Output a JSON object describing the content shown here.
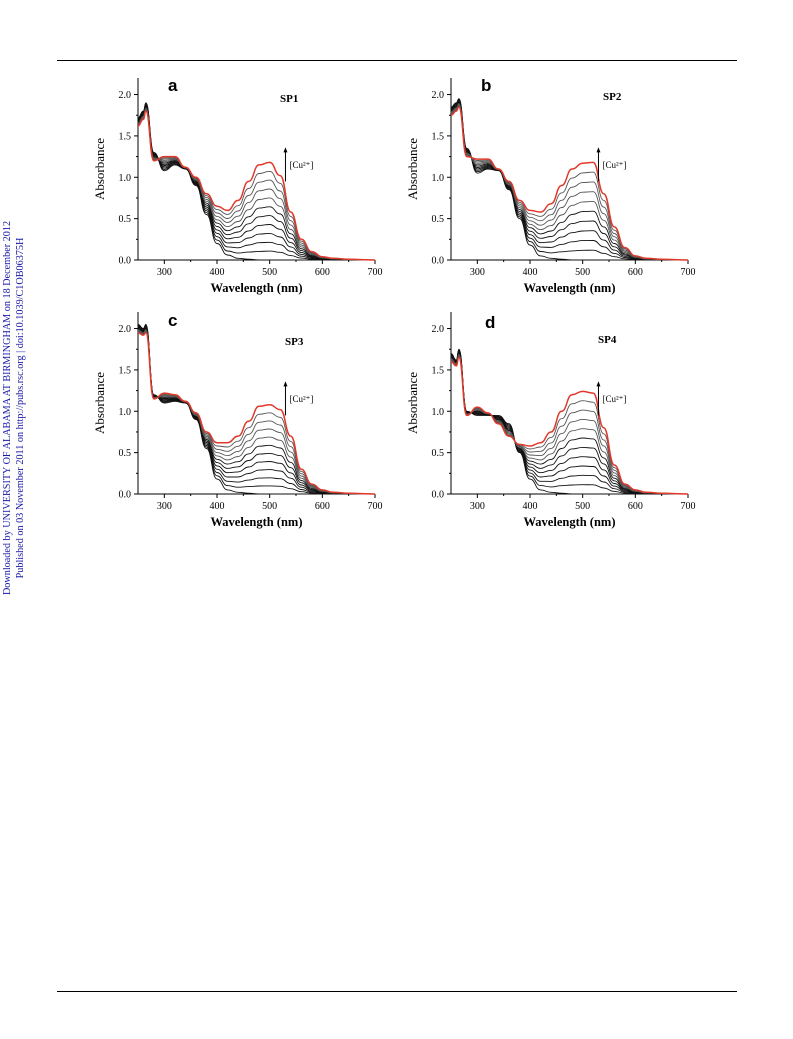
{
  "side_note": {
    "line1": "Downloaded by UNIVERSITY OF ALABAMA AT BIRMINGHAM on 18 December 2012",
    "line2": "Published on 03 November 2011 on http://pubs.rsc.org | doi:10.1039/C1OB06375H"
  },
  "colors": {
    "final_curve": "#e0392b",
    "curves": "#111111",
    "note_text": "#1a1aa8"
  },
  "chart_data": [
    {
      "type": "line",
      "panel": "a",
      "sample": "SP1",
      "xlabel": "Wavelength (nm)",
      "ylabel": "Absorbance",
      "annotation": "[Cu²⁺]",
      "xlim": [
        250,
        700
      ],
      "ylim": [
        0,
        2.2
      ],
      "xticks": [
        300,
        400,
        500,
        600,
        700
      ],
      "yticks": [
        0.0,
        0.5,
        1.0,
        1.5,
        2.0
      ],
      "series_count": 12,
      "x": [
        250,
        260,
        265,
        280,
        300,
        320,
        340,
        360,
        380,
        400,
        420,
        440,
        460,
        480,
        500,
        520,
        540,
        560,
        580,
        600,
        620,
        650,
        700
      ],
      "first": [
        1.72,
        1.8,
        1.9,
        1.3,
        1.08,
        1.15,
        1.1,
        0.9,
        0.55,
        0.2,
        0.06,
        0.02,
        0.01,
        0.0,
        0.0,
        0.0,
        0.0,
        0.0,
        0.0,
        0.0,
        0.0,
        0.0,
        0.0
      ],
      "final": [
        1.62,
        1.7,
        1.8,
        1.2,
        1.25,
        1.25,
        1.12,
        1.0,
        0.8,
        0.65,
        0.6,
        0.72,
        0.95,
        1.15,
        1.18,
        1.02,
        0.58,
        0.25,
        0.1,
        0.04,
        0.02,
        0.01,
        0.0
      ]
    },
    {
      "type": "line",
      "panel": "b",
      "sample": "SP2",
      "xlabel": "Wavelength (nm)",
      "ylabel": "Absorbance",
      "annotation": "[Cu²⁺]",
      "xlim": [
        250,
        700
      ],
      "ylim": [
        0,
        2.2
      ],
      "xticks": [
        300,
        400,
        500,
        600,
        700
      ],
      "yticks": [
        0.0,
        0.5,
        1.0,
        1.5,
        2.0
      ],
      "series_count": 11,
      "x": [
        250,
        260,
        265,
        280,
        300,
        320,
        340,
        360,
        380,
        400,
        420,
        440,
        460,
        480,
        500,
        520,
        540,
        560,
        580,
        600,
        620,
        650,
        700
      ],
      "first": [
        1.85,
        1.9,
        1.95,
        1.35,
        1.05,
        1.1,
        1.08,
        0.85,
        0.5,
        0.18,
        0.05,
        0.02,
        0.01,
        0.0,
        0.0,
        0.0,
        0.0,
        0.0,
        0.0,
        0.0,
        0.0,
        0.0,
        0.0
      ],
      "final": [
        1.75,
        1.8,
        1.85,
        1.25,
        1.22,
        1.22,
        1.1,
        0.95,
        0.72,
        0.6,
        0.58,
        0.68,
        0.9,
        1.1,
        1.17,
        1.18,
        0.8,
        0.4,
        0.15,
        0.05,
        0.02,
        0.01,
        0.0
      ]
    },
    {
      "type": "line",
      "panel": "c",
      "sample": "SP3",
      "xlabel": "Wavelength (nm)",
      "ylabel": "Absorbance",
      "annotation": "[Cu²⁺]",
      "xlim": [
        250,
        700
      ],
      "ylim": [
        0,
        2.2
      ],
      "xticks": [
        300,
        400,
        500,
        600,
        700
      ],
      "yticks": [
        0.0,
        0.5,
        1.0,
        1.5,
        2.0
      ],
      "series_count": 12,
      "x": [
        250,
        260,
        265,
        280,
        300,
        320,
        340,
        360,
        380,
        400,
        420,
        440,
        460,
        480,
        500,
        520,
        540,
        560,
        580,
        600,
        620,
        650,
        700
      ],
      "first": [
        2.05,
        2.0,
        2.05,
        1.2,
        1.1,
        1.12,
        1.1,
        0.9,
        0.55,
        0.18,
        0.05,
        0.02,
        0.01,
        0.0,
        0.0,
        0.0,
        0.0,
        0.0,
        0.0,
        0.0,
        0.0,
        0.0,
        0.0
      ],
      "final": [
        1.95,
        1.92,
        1.95,
        1.15,
        1.22,
        1.2,
        1.12,
        0.98,
        0.75,
        0.62,
        0.62,
        0.7,
        0.88,
        1.06,
        1.08,
        1.02,
        0.7,
        0.3,
        0.12,
        0.05,
        0.02,
        0.01,
        0.0
      ]
    },
    {
      "type": "line",
      "panel": "d",
      "sample": "SP4",
      "xlabel": "Wavelength (nm)",
      "ylabel": "Absorbance",
      "annotation": "[Cu²⁺]",
      "xlim": [
        250,
        700
      ],
      "ylim": [
        0,
        2.2
      ],
      "xticks": [
        300,
        400,
        500,
        600,
        700
      ],
      "yticks": [
        0.0,
        0.5,
        1.0,
        1.5,
        2.0
      ],
      "series_count": 12,
      "x": [
        250,
        260,
        265,
        280,
        300,
        320,
        340,
        360,
        380,
        400,
        420,
        440,
        460,
        480,
        500,
        520,
        540,
        560,
        580,
        600,
        620,
        650,
        700
      ],
      "first": [
        1.7,
        1.62,
        1.75,
        1.0,
        0.95,
        0.95,
        0.95,
        0.85,
        0.5,
        0.18,
        0.05,
        0.02,
        0.01,
        0.0,
        0.0,
        0.0,
        0.0,
        0.0,
        0.0,
        0.0,
        0.0,
        0.0,
        0.0
      ],
      "final": [
        1.6,
        1.55,
        1.65,
        0.95,
        1.05,
        0.98,
        0.85,
        0.7,
        0.6,
        0.58,
        0.62,
        0.75,
        1.0,
        1.2,
        1.24,
        1.22,
        0.8,
        0.35,
        0.12,
        0.05,
        0.02,
        0.01,
        0.0
      ]
    }
  ]
}
